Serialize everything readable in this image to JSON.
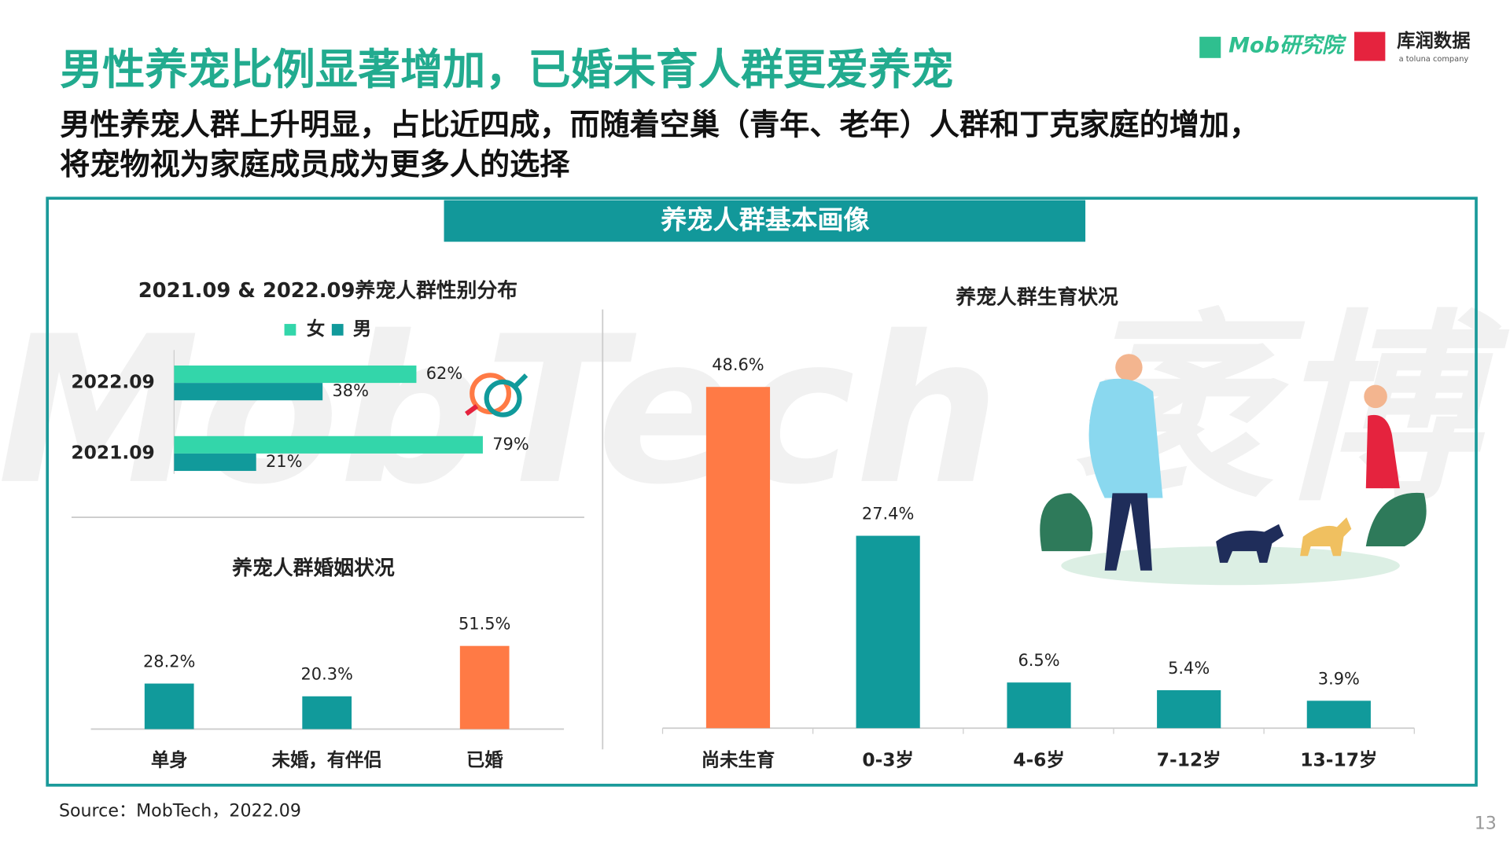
{
  "header": {
    "title": "男性养宠比例显著增加，已婚未育人群更爱养宠",
    "subtitle_lines": [
      "男性养宠人群上升明显，占比近四成，而随着空巢（青年、老年）人群和丁克家庭的增加，",
      "将宠物视为家庭成员成为更多人的选择"
    ],
    "logo_mob": "Mob研究院",
    "logo_kr": "库润数据",
    "logo_kr_sub": "a toluna company"
  },
  "panel_title": "养宠人群基本画像",
  "watermark": "MobTech 袤博",
  "source": "Source：MobTech，2022.09",
  "page_number": "13",
  "chart_data": [
    {
      "type": "bar",
      "orientation": "horizontal",
      "title": "2021.09 & 2022.09养宠人群性别分布",
      "categories": [
        "2022.09",
        "2021.09"
      ],
      "series": [
        {
          "name": "女",
          "color": "#33d6aa",
          "values": [
            62,
            79
          ],
          "value_labels": [
            "62%",
            "79%"
          ]
        },
        {
          "name": "男",
          "color": "#119a9b",
          "values": [
            38,
            21
          ],
          "value_labels": [
            "38%",
            "21%"
          ]
        }
      ]
    },
    {
      "type": "bar",
      "title": "养宠人群婚姻状况",
      "categories": [
        "单身",
        "未婚，有伴侣",
        "已婚"
      ],
      "values": [
        28.2,
        20.3,
        51.5
      ],
      "value_labels": [
        "28.2%",
        "20.3%",
        "51.5%"
      ],
      "colors": [
        "#119a9b",
        "#119a9b",
        "#ff7a45"
      ]
    },
    {
      "type": "bar",
      "title": "养宠人群生育状况",
      "categories": [
        "尚未生育",
        "0-3岁",
        "4-6岁",
        "7-12岁",
        "13-17岁"
      ],
      "values": [
        48.6,
        27.4,
        6.5,
        5.4,
        3.9
      ],
      "value_labels": [
        "48.6%",
        "27.4%",
        "6.5%",
        "5.4%",
        "3.9%"
      ],
      "colors": [
        "#ff7a45",
        "#119a9b",
        "#119a9b",
        "#119a9b",
        "#119a9b"
      ]
    }
  ]
}
